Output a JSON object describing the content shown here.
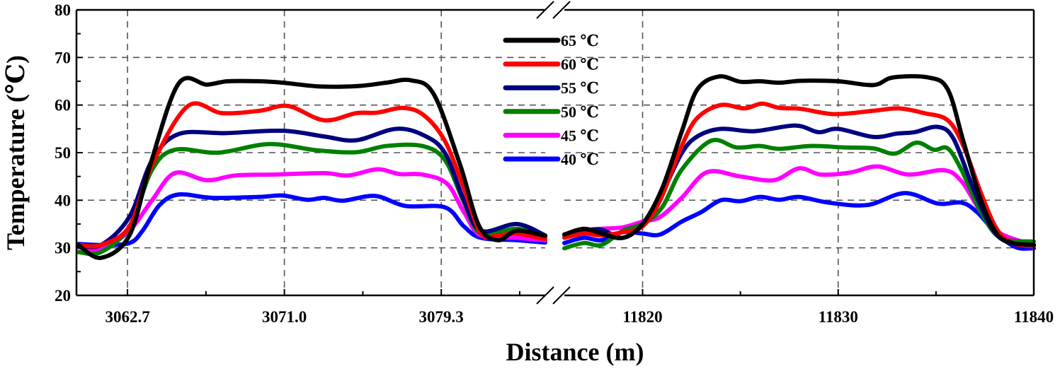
{
  "chart_data": {
    "type": "line",
    "title": "",
    "xlabel": "Distance (m)",
    "ylabel": "Temperature (℃)",
    "ylim": [
      20,
      80
    ],
    "yticks": [
      "20",
      "30",
      "40",
      "50",
      "60",
      "70",
      "80"
    ],
    "broken_x_axis": true,
    "panels": [
      {
        "xlim": [
          3060.0,
          3084.8
        ],
        "xticks": [
          3062.7,
          3071.0,
          3079.3
        ],
        "xtick_labels": [
          "3062.7",
          "3071.0",
          "3079.3"
        ],
        "minor_xticks": [
          3066.85,
          3075.15,
          3083.45
        ]
      },
      {
        "xlim": [
          11816.0,
          11840.0
        ],
        "xticks": [
          11820,
          11830,
          11840
        ],
        "xtick_labels": [
          "11820",
          "11830",
          "11840"
        ],
        "minor_xticks": [
          11825,
          11835
        ]
      }
    ],
    "grid": "dashed",
    "legend_position": "top-center",
    "series": [
      {
        "name": "65 ℃",
        "color": "#000000",
        "left": [
          [
            3060.1,
            30.6
          ],
          [
            3061.3,
            27.9
          ],
          [
            3062.8,
            32.6
          ],
          [
            3063.9,
            47.4
          ],
          [
            3065.4,
            64.5
          ],
          [
            3066.9,
            64.3
          ],
          [
            3068.0,
            65.0
          ],
          [
            3069.7,
            65.0
          ],
          [
            3070.9,
            64.7
          ],
          [
            3072.9,
            63.9
          ],
          [
            3074.9,
            64.0
          ],
          [
            3076.4,
            64.7
          ],
          [
            3077.7,
            65.2
          ],
          [
            3078.9,
            62.3
          ],
          [
            3080.3,
            47.4
          ],
          [
            3081.3,
            34.6
          ],
          [
            3082.3,
            31.6
          ],
          [
            3083.3,
            33.6
          ],
          [
            3084.8,
            32.5
          ]
        ],
        "right": [
          [
            11816.0,
            32.8
          ],
          [
            11817.0,
            34.0
          ],
          [
            11817.9,
            33.0
          ],
          [
            11819.0,
            32.1
          ],
          [
            11820.0,
            35.0
          ],
          [
            11821.0,
            42.5
          ],
          [
            11822.0,
            54.4
          ],
          [
            11822.8,
            63.3
          ],
          [
            11823.9,
            66.0
          ],
          [
            11825.0,
            64.9
          ],
          [
            11826.0,
            65.0
          ],
          [
            11827.0,
            64.7
          ],
          [
            11828.1,
            65.1
          ],
          [
            11830.0,
            65.0
          ],
          [
            11831.8,
            64.2
          ],
          [
            11832.8,
            65.8
          ],
          [
            11834.6,
            65.8
          ],
          [
            11835.6,
            63.3
          ],
          [
            11836.4,
            52.4
          ],
          [
            11837.3,
            40.0
          ],
          [
            11838.1,
            33.0
          ],
          [
            11838.9,
            31.0
          ],
          [
            11840.0,
            30.6
          ]
        ]
      },
      {
        "name": "60 ℃",
        "color": "#ff0000",
        "left": [
          [
            3060.1,
            30.6
          ],
          [
            3061.3,
            30.6
          ],
          [
            3062.8,
            34.5
          ],
          [
            3064.0,
            47.4
          ],
          [
            3065.9,
            59.8
          ],
          [
            3067.7,
            58.3
          ],
          [
            3069.7,
            58.8
          ],
          [
            3071.2,
            59.8
          ],
          [
            3073.1,
            56.8
          ],
          [
            3074.8,
            58.3
          ],
          [
            3075.9,
            58.4
          ],
          [
            3077.3,
            59.4
          ],
          [
            3078.4,
            57.8
          ],
          [
            3079.5,
            52.4
          ],
          [
            3080.5,
            42.5
          ],
          [
            3081.4,
            33.0
          ],
          [
            3082.3,
            32.6
          ],
          [
            3083.3,
            33.0
          ],
          [
            3084.8,
            31.8
          ]
        ],
        "right": [
          [
            11816.0,
            32.1
          ],
          [
            11817.0,
            33.0
          ],
          [
            11817.9,
            32.6
          ],
          [
            11819.0,
            33.3
          ],
          [
            11820.0,
            34.5
          ],
          [
            11820.9,
            40.0
          ],
          [
            11822.0,
            51.4
          ],
          [
            11822.8,
            57.3
          ],
          [
            11824.0,
            60.0
          ],
          [
            11825.2,
            59.3
          ],
          [
            11826.1,
            60.3
          ],
          [
            11827.0,
            59.4
          ],
          [
            11828.1,
            59.2
          ],
          [
            11829.8,
            58.1
          ],
          [
            11831.8,
            58.8
          ],
          [
            11833.1,
            59.3
          ],
          [
            11834.4,
            58.3
          ],
          [
            11835.6,
            56.8
          ],
          [
            11836.4,
            51.4
          ],
          [
            11837.3,
            41.5
          ],
          [
            11838.1,
            34.0
          ],
          [
            11838.9,
            31.0
          ],
          [
            11840.0,
            30.3
          ]
        ]
      },
      {
        "name": "55 ℃",
        "color": "#000080",
        "left": [
          [
            3060.1,
            30.6
          ],
          [
            3061.3,
            30.6
          ],
          [
            3062.8,
            36.5
          ],
          [
            3064.0,
            48.4
          ],
          [
            3065.4,
            53.9
          ],
          [
            3067.9,
            54.1
          ],
          [
            3070.9,
            54.6
          ],
          [
            3073.1,
            53.4
          ],
          [
            3074.8,
            52.6
          ],
          [
            3076.9,
            55.0
          ],
          [
            3078.4,
            53.6
          ],
          [
            3079.5,
            49.9
          ],
          [
            3080.5,
            40.0
          ],
          [
            3081.4,
            33.6
          ],
          [
            3083.3,
            35.0
          ],
          [
            3084.8,
            32.6
          ]
        ],
        "right": [
          [
            11816.0,
            32.8
          ],
          [
            11817.0,
            33.6
          ],
          [
            11817.9,
            33.8
          ],
          [
            11819.0,
            32.1
          ],
          [
            11820.0,
            35.0
          ],
          [
            11821.0,
            41.5
          ],
          [
            11822.0,
            49.9
          ],
          [
            11822.8,
            53.4
          ],
          [
            11824.0,
            55.0
          ],
          [
            11825.7,
            54.5
          ],
          [
            11827.8,
            55.7
          ],
          [
            11829.0,
            54.3
          ],
          [
            11830.0,
            55.0
          ],
          [
            11831.8,
            53.3
          ],
          [
            11833.0,
            54.0
          ],
          [
            11833.9,
            54.3
          ],
          [
            11835.1,
            55.4
          ],
          [
            11835.9,
            52.9
          ],
          [
            11836.9,
            42.5
          ],
          [
            11837.8,
            34.5
          ],
          [
            11838.6,
            31.3
          ],
          [
            11840.0,
            30.6
          ]
        ]
      },
      {
        "name": "50 ℃",
        "color": "#008000",
        "left": [
          [
            3060.1,
            29.1
          ],
          [
            3061.3,
            29.1
          ],
          [
            3062.8,
            34.5
          ],
          [
            3064.0,
            46.4
          ],
          [
            3065.2,
            50.6
          ],
          [
            3067.5,
            50.0
          ],
          [
            3070.2,
            51.8
          ],
          [
            3072.7,
            50.5
          ],
          [
            3074.8,
            50.1
          ],
          [
            3076.4,
            51.4
          ],
          [
            3078.3,
            51.4
          ],
          [
            3079.5,
            48.4
          ],
          [
            3080.5,
            39.5
          ],
          [
            3081.4,
            33.0
          ],
          [
            3083.3,
            34.0
          ],
          [
            3084.8,
            32.3
          ]
        ],
        "right": [
          [
            11816.0,
            29.9
          ],
          [
            11817.0,
            31.0
          ],
          [
            11817.9,
            30.6
          ],
          [
            11819.0,
            33.6
          ],
          [
            11820.0,
            35.0
          ],
          [
            11821.0,
            38.5
          ],
          [
            11822.0,
            46.4
          ],
          [
            11823.5,
            52.5
          ],
          [
            11824.8,
            51.1
          ],
          [
            11826.0,
            51.4
          ],
          [
            11827.0,
            50.8
          ],
          [
            11828.6,
            51.4
          ],
          [
            11830.3,
            51.1
          ],
          [
            11831.8,
            50.9
          ],
          [
            11832.9,
            49.8
          ],
          [
            11834.0,
            52.1
          ],
          [
            11834.9,
            50.6
          ],
          [
            11835.6,
            50.9
          ],
          [
            11836.3,
            46.4
          ],
          [
            11837.3,
            37.5
          ],
          [
            11838.3,
            32.1
          ],
          [
            11840.0,
            31.3
          ]
        ]
      },
      {
        "name": "45 ℃",
        "color": "#ff00ff",
        "left": [
          [
            3060.1,
            30.1
          ],
          [
            3061.3,
            29.6
          ],
          [
            3062.8,
            33.6
          ],
          [
            3064.0,
            40.0
          ],
          [
            3065.2,
            45.7
          ],
          [
            3066.9,
            44.2
          ],
          [
            3068.4,
            45.2
          ],
          [
            3070.5,
            45.4
          ],
          [
            3073.1,
            45.7
          ],
          [
            3074.4,
            45.2
          ],
          [
            3075.9,
            46.5
          ],
          [
            3077.1,
            45.5
          ],
          [
            3078.3,
            45.4
          ],
          [
            3079.6,
            43.5
          ],
          [
            3080.5,
            37.5
          ],
          [
            3081.4,
            32.6
          ],
          [
            3083.3,
            32.1
          ],
          [
            3084.8,
            31.6
          ]
        ],
        "right": [
          [
            11816.0,
            32.6
          ],
          [
            11817.0,
            33.6
          ],
          [
            11817.9,
            34.0
          ],
          [
            11819.0,
            34.3
          ],
          [
            11820.0,
            35.5
          ],
          [
            11820.9,
            36.5
          ],
          [
            11822.0,
            40.5
          ],
          [
            11823.3,
            45.9
          ],
          [
            11825.0,
            45.0
          ],
          [
            11826.7,
            44.2
          ],
          [
            11828.0,
            46.7
          ],
          [
            11829.1,
            45.4
          ],
          [
            11830.6,
            45.8
          ],
          [
            11832.0,
            47.1
          ],
          [
            11833.6,
            45.4
          ],
          [
            11835.4,
            46.3
          ],
          [
            11836.3,
            44.0
          ],
          [
            11837.3,
            37.5
          ],
          [
            11838.3,
            33.0
          ],
          [
            11840.0,
            30.6
          ]
        ]
      },
      {
        "name": "40 ℃",
        "color": "#0000ff",
        "left": [
          [
            3060.1,
            30.8
          ],
          [
            3061.3,
            30.6
          ],
          [
            3062.8,
            31.0
          ],
          [
            3063.5,
            33.6
          ],
          [
            3064.4,
            39.0
          ],
          [
            3065.4,
            41.2
          ],
          [
            3067.2,
            40.5
          ],
          [
            3069.7,
            40.7
          ],
          [
            3070.9,
            41.0
          ],
          [
            3072.2,
            40.1
          ],
          [
            3073.1,
            40.5
          ],
          [
            3074.1,
            39.9
          ],
          [
            3075.8,
            40.9
          ],
          [
            3077.4,
            38.8
          ],
          [
            3079.5,
            38.5
          ],
          [
            3080.5,
            34.5
          ],
          [
            3081.4,
            32.1
          ],
          [
            3083.3,
            31.6
          ],
          [
            3084.8,
            31.1
          ]
        ],
        "right": [
          [
            11816.0,
            31.0
          ],
          [
            11817.0,
            32.1
          ],
          [
            11817.9,
            31.6
          ],
          [
            11819.0,
            33.3
          ],
          [
            11820.0,
            33.0
          ],
          [
            11820.9,
            32.8
          ],
          [
            11822.0,
            35.5
          ],
          [
            11823.0,
            37.5
          ],
          [
            11824.0,
            40.0
          ],
          [
            11825.0,
            39.8
          ],
          [
            11826.0,
            40.7
          ],
          [
            11827.0,
            40.1
          ],
          [
            11828.0,
            40.7
          ],
          [
            11829.5,
            39.5
          ],
          [
            11831.5,
            39.0
          ],
          [
            11833.4,
            41.5
          ],
          [
            11835.1,
            39.3
          ],
          [
            11836.3,
            39.5
          ],
          [
            11837.1,
            37.5
          ],
          [
            11838.1,
            33.0
          ],
          [
            11839.1,
            30.1
          ],
          [
            11840.0,
            29.9
          ]
        ]
      }
    ]
  }
}
